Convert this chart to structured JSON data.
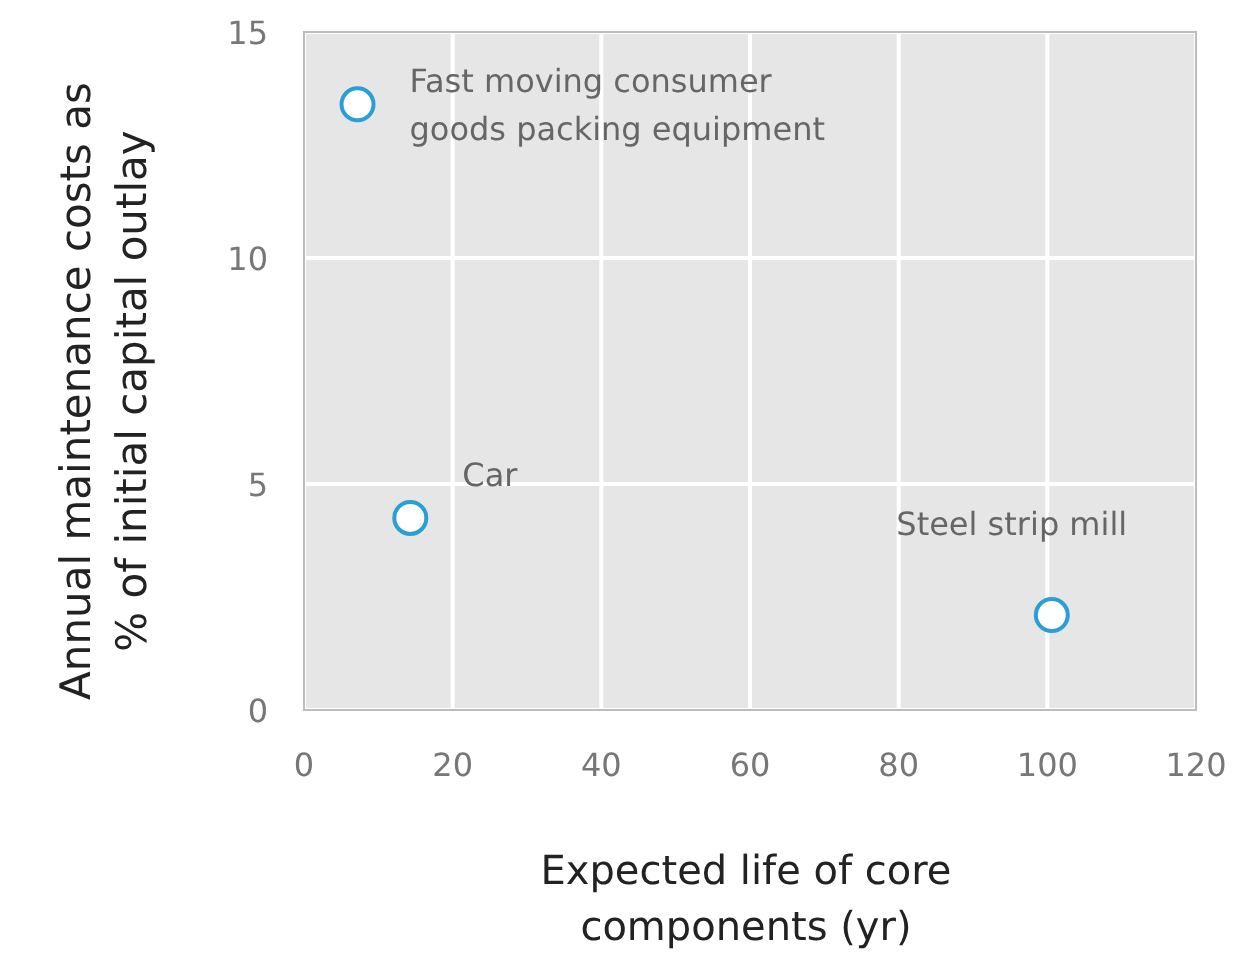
{
  "chart_data": {
    "type": "scatter",
    "xlabel": "Expected life of core\ncomponents (yr)",
    "ylabel": "Annual maintenance costs as\n% of initial capital outlay",
    "x": [
      7.2,
      14.3,
      100.6
    ],
    "values": [
      13.4,
      4.25,
      2.1
    ],
    "color": "#2a9fd6",
    "marker": "circle",
    "grid": true,
    "xlim": [
      0,
      120
    ],
    "xticks": [
      0,
      20,
      40,
      60,
      80,
      100,
      120
    ],
    "ylim": [
      0,
      15
    ],
    "yticks": [
      0,
      5,
      10,
      15
    ],
    "annotations": [
      {
        "text": "Fast moving consumer\ngoods packing equipment",
        "x": 7.2,
        "y": 13.4
      },
      {
        "text": "Car",
        "x": 14.3,
        "y": 4.25
      },
      {
        "text": "Steel strip mill",
        "x": 100.6,
        "y": 2.1
      }
    ]
  }
}
